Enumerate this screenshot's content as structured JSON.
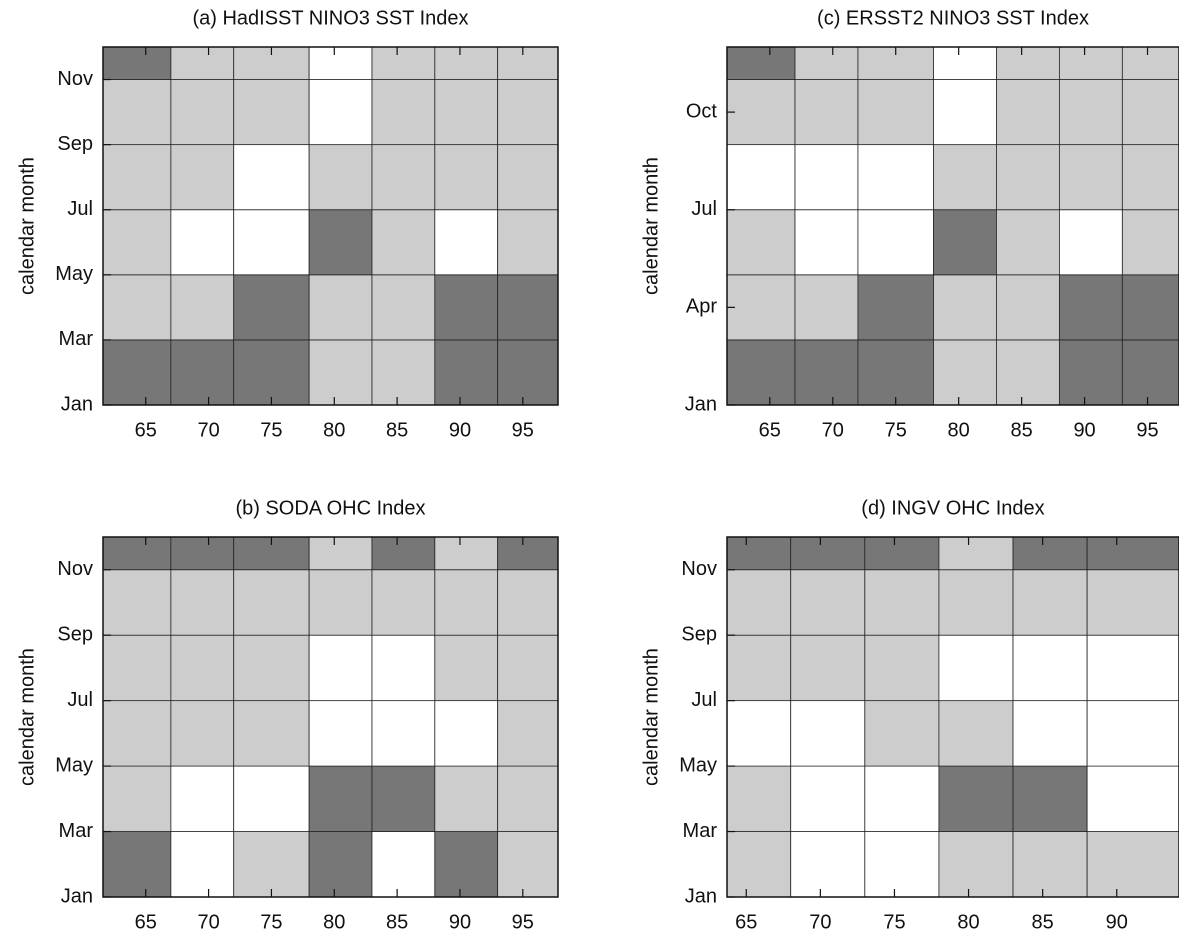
{
  "chart_data": [
    {
      "type": "contour",
      "title": "(a) HadISST NINO3 SST Index",
      "ylabel": "calendar month",
      "xlim": [
        61.6,
        97.8
      ],
      "xticks": [
        65,
        70,
        75,
        80,
        85,
        90,
        95
      ],
      "ylim": [
        1,
        12
      ],
      "yticks": [
        {
          "value": 1,
          "label": "Jan"
        },
        {
          "value": 3,
          "label": "Mar"
        },
        {
          "value": 5,
          "label": "May"
        },
        {
          "value": 7,
          "label": "Jul"
        },
        {
          "value": 9,
          "label": "Sep"
        },
        {
          "value": 11,
          "label": "Nov"
        }
      ],
      "x_edges": [
        61.6,
        67,
        72,
        78,
        83,
        88,
        93,
        97.8
      ],
      "y_edges": [
        1,
        3,
        5,
        7,
        9,
        11,
        12
      ],
      "levels": [
        [
          2,
          2,
          2,
          1,
          1,
          2,
          2
        ],
        [
          1,
          1,
          2,
          1,
          1,
          2,
          2
        ],
        [
          1,
          0,
          0,
          2,
          1,
          0,
          1
        ],
        [
          1,
          1,
          0,
          1,
          1,
          1,
          1
        ],
        [
          1,
          1,
          1,
          0,
          1,
          1,
          1
        ],
        [
          2,
          1,
          1,
          0,
          1,
          1,
          1
        ]
      ],
      "colors": [
        "#ffffff",
        "#cdcdcd",
        "#777777"
      ]
    },
    {
      "type": "contour",
      "title": "(b) SODA OHC Index",
      "ylabel": "calendar month",
      "xlim": [
        61.6,
        97.8
      ],
      "xticks": [
        65,
        70,
        75,
        80,
        85,
        90,
        95
      ],
      "ylim": [
        1,
        12
      ],
      "yticks": [
        {
          "value": 1,
          "label": "Jan"
        },
        {
          "value": 3,
          "label": "Mar"
        },
        {
          "value": 5,
          "label": "May"
        },
        {
          "value": 7,
          "label": "Jul"
        },
        {
          "value": 9,
          "label": "Sep"
        },
        {
          "value": 11,
          "label": "Nov"
        }
      ],
      "x_edges": [
        61.6,
        67,
        72,
        78,
        83,
        88,
        93,
        97.8
      ],
      "y_edges": [
        1,
        3,
        5,
        7,
        9,
        11,
        12
      ],
      "levels": [
        [
          2,
          0,
          1,
          2,
          0,
          2,
          1
        ],
        [
          1,
          0,
          0,
          2,
          2,
          1,
          1
        ],
        [
          1,
          1,
          1,
          0,
          0,
          0,
          1
        ],
        [
          1,
          1,
          1,
          0,
          0,
          1,
          1
        ],
        [
          1,
          1,
          1,
          1,
          1,
          1,
          1
        ],
        [
          2,
          2,
          2,
          1,
          2,
          1,
          2
        ]
      ],
      "colors": [
        "#ffffff",
        "#cdcdcd",
        "#777777"
      ]
    },
    {
      "type": "contour",
      "title": "(c) ERSST2 NINO3 SST Index",
      "ylabel": "calendar month",
      "xlim": [
        61.6,
        97.5
      ],
      "xticks": [
        65,
        70,
        75,
        80,
        85,
        90,
        95
      ],
      "ylim": [
        1,
        12
      ],
      "yticks": [
        {
          "value": 1,
          "label": "Jan"
        },
        {
          "value": 4,
          "label": "Apr"
        },
        {
          "value": 7,
          "label": "Jul"
        },
        {
          "value": 10,
          "label": "Oct"
        }
      ],
      "x_edges": [
        61.6,
        67,
        72,
        78,
        83,
        88,
        93,
        97.5
      ],
      "y_edges": [
        1,
        3,
        5,
        7,
        9,
        11,
        12
      ],
      "levels": [
        [
          2,
          2,
          2,
          1,
          1,
          2,
          2
        ],
        [
          1,
          1,
          2,
          1,
          1,
          2,
          2
        ],
        [
          1,
          0,
          0,
          2,
          1,
          0,
          1
        ],
        [
          0,
          0,
          0,
          1,
          1,
          1,
          1
        ],
        [
          1,
          1,
          1,
          0,
          1,
          1,
          1
        ],
        [
          2,
          1,
          1,
          0,
          1,
          1,
          1
        ]
      ],
      "colors": [
        "#ffffff",
        "#cdcdcd",
        "#777777"
      ]
    },
    {
      "type": "contour",
      "title": "(d) INGV OHC Index",
      "ylabel": "calendar month",
      "xlim": [
        63.7,
        94.2
      ],
      "xticks": [
        65,
        70,
        75,
        80,
        85,
        90
      ],
      "ylim": [
        1,
        12
      ],
      "yticks": [
        {
          "value": 1,
          "label": "Jan"
        },
        {
          "value": 3,
          "label": "Mar"
        },
        {
          "value": 5,
          "label": "May"
        },
        {
          "value": 7,
          "label": "Jul"
        },
        {
          "value": 9,
          "label": "Sep"
        },
        {
          "value": 11,
          "label": "Nov"
        }
      ],
      "x_edges": [
        63.7,
        68,
        73,
        78,
        83,
        88,
        94.2
      ],
      "y_edges": [
        1,
        3,
        5,
        7,
        9,
        11,
        12
      ],
      "levels": [
        [
          1,
          0,
          0,
          1,
          1,
          1
        ],
        [
          1,
          0,
          0,
          2,
          2,
          0
        ],
        [
          0,
          0,
          1,
          1,
          0,
          0
        ],
        [
          1,
          1,
          1,
          0,
          0,
          0
        ],
        [
          1,
          1,
          1,
          1,
          1,
          1
        ],
        [
          2,
          2,
          2,
          1,
          2,
          2
        ]
      ],
      "colors": [
        "#ffffff",
        "#cdcdcd",
        "#777777"
      ]
    }
  ]
}
